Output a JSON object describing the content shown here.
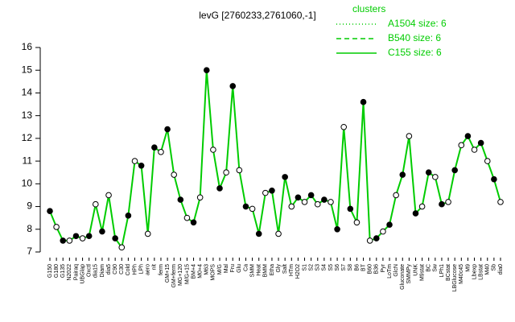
{
  "chart_data": {
    "type": "line",
    "title": "levG [2760233,2761060,-1]",
    "legend_title": "clusters",
    "legend": [
      {
        "name": "A1504 size: 6",
        "style": "dotted"
      },
      {
        "name": "B540 size: 6",
        "style": "dashed"
      },
      {
        "name": "C155 size: 6",
        "style": "solid"
      }
    ],
    "color": "#00cc00",
    "categories": [
      "G150",
      "G180",
      "G135",
      "N2022",
      "Pairaq",
      "UBGlap",
      "Oxctl",
      "dia15",
      "Diam",
      "dia5",
      "C90",
      "C30",
      "Cold",
      "HPh",
      "LPh",
      "aero",
      "nit",
      "ferm",
      "GM+15",
      "GM+ferm",
      "MG+120",
      "M/G+15",
      "BM+4",
      "M0+4",
      "M63",
      "MOPS",
      "M/G",
      "Mal",
      "Fru",
      "Glu",
      "Ca",
      "SMM",
      "Heat",
      "BMM",
      "Etha",
      "Gly",
      "Salt",
      "HTm",
      "H2O2",
      "S1",
      "S2",
      "S3",
      "S4",
      "S5",
      "S6",
      "S7",
      "S8",
      "B6",
      "BT",
      "B60",
      "B36",
      "Pyr",
      "LoTm",
      "GlcN",
      "Gluconate",
      "SMMPy",
      "UNK",
      "M9stat",
      "BC",
      "Sw",
      "LPh1",
      "BCstat",
      "LBGlucose",
      "M40c45",
      "M9",
      "Lbexp",
      "LBstat",
      "M40",
      "Sb",
      "dia0"
    ],
    "values": [
      8.8,
      8.1,
      7.5,
      7.5,
      7.7,
      7.6,
      7.7,
      9.1,
      7.9,
      9.5,
      7.6,
      7.2,
      8.6,
      11.0,
      10.8,
      7.8,
      11.6,
      11.4,
      12.4,
      10.4,
      9.3,
      8.5,
      8.3,
      9.4,
      15.0,
      11.5,
      9.8,
      10.5,
      14.3,
      10.6,
      9.0,
      8.9,
      7.8,
      9.6,
      9.7,
      7.8,
      10.3,
      9.0,
      9.4,
      9.2,
      9.5,
      9.1,
      9.3,
      9.2,
      8.0,
      12.5,
      8.9,
      8.3,
      13.6,
      7.5,
      7.6,
      7.9,
      8.2,
      9.5,
      10.4,
      12.1,
      8.7,
      9.0,
      10.5,
      10.3,
      9.1,
      9.2,
      10.6,
      11.7,
      12.1,
      11.5,
      11.8,
      11.0,
      10.2,
      9.2
    ],
    "ylim": [
      7,
      16
    ],
    "yticks": [
      7,
      8,
      9,
      10,
      11,
      12,
      13,
      14,
      15,
      16
    ]
  }
}
